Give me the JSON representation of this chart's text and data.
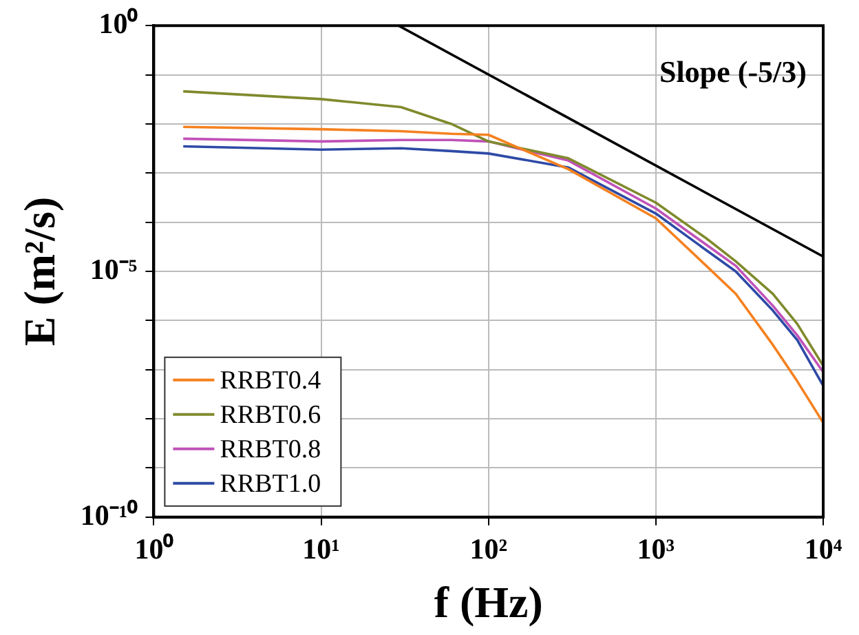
{
  "chart_data": {
    "type": "line",
    "xlabel": "f (Hz)",
    "ylabel": "E (m²/s)",
    "x": [
      1.5,
      10,
      30,
      60,
      100,
      300,
      1000,
      2000,
      3000,
      5000,
      7000,
      10000
    ],
    "series": [
      {
        "name": "RRBT0.4",
        "color": "#f5811f",
        "values": [
          0.0087,
          0.0078,
          0.0071,
          0.0063,
          0.006,
          0.0012,
          0.00012,
          1.3e-05,
          3.5e-06,
          3.2e-07,
          5.8e-08,
          8.3e-09
        ]
      },
      {
        "name": "RRBT0.6",
        "color": "#7f8a2c",
        "values": [
          0.046,
          0.032,
          0.022,
          0.01,
          0.0044,
          0.002,
          0.00025,
          4.7e-05,
          1.6e-05,
          3.5e-06,
          8.5e-07,
          1.2e-07
        ]
      },
      {
        "name": "RRBT0.8",
        "color": "#c052b8",
        "values": [
          0.005,
          0.0044,
          0.0047,
          0.0047,
          0.0044,
          0.0018,
          0.00019,
          3.5e-05,
          1.3e-05,
          2e-06,
          5e-07,
          8.9e-08
        ]
      },
      {
        "name": "RRBT1.0",
        "color": "#2e4aa6",
        "values": [
          0.0035,
          0.003,
          0.0032,
          0.0028,
          0.0025,
          0.0013,
          0.00015,
          2.7e-05,
          1e-05,
          1.6e-06,
          4e-07,
          4.7e-08
        ]
      },
      {
        "color": "#000000",
        "x": [
          29,
          10000
        ],
        "values": [
          1,
          2e-05
        ]
      }
    ],
    "annotations": [
      "Slope (-5/3)"
    ],
    "log": "xy",
    "xlim": [
      1,
      10000
    ],
    "ylim": [
      1e-10,
      1
    ],
    "xticks": [
      {
        "value": 1,
        "label": "10⁰"
      },
      {
        "value": 10,
        "label": "10¹"
      },
      {
        "value": 100,
        "label": "10²"
      },
      {
        "value": 1000,
        "label": "10³"
      },
      {
        "value": 10000,
        "label": "10⁴"
      }
    ],
    "yticks": [
      {
        "value": 1e-10,
        "label": "10⁻¹⁰"
      },
      {
        "value": 1e-09,
        "label": null
      },
      {
        "value": 1e-08,
        "label": null
      },
      {
        "value": 1e-07,
        "label": null
      },
      {
        "value": 1e-06,
        "label": null
      },
      {
        "value": 1e-05,
        "label": "10⁻⁵"
      },
      {
        "value": 0.0001,
        "label": null
      },
      {
        "value": 0.001,
        "label": null
      },
      {
        "value": 0.01,
        "label": null
      },
      {
        "value": 0.1,
        "label": null
      },
      {
        "value": 1,
        "label": "10⁰"
      }
    ],
    "grid": true,
    "legend": "bottom left",
    "line_style": "solid",
    "marker": "none"
  }
}
